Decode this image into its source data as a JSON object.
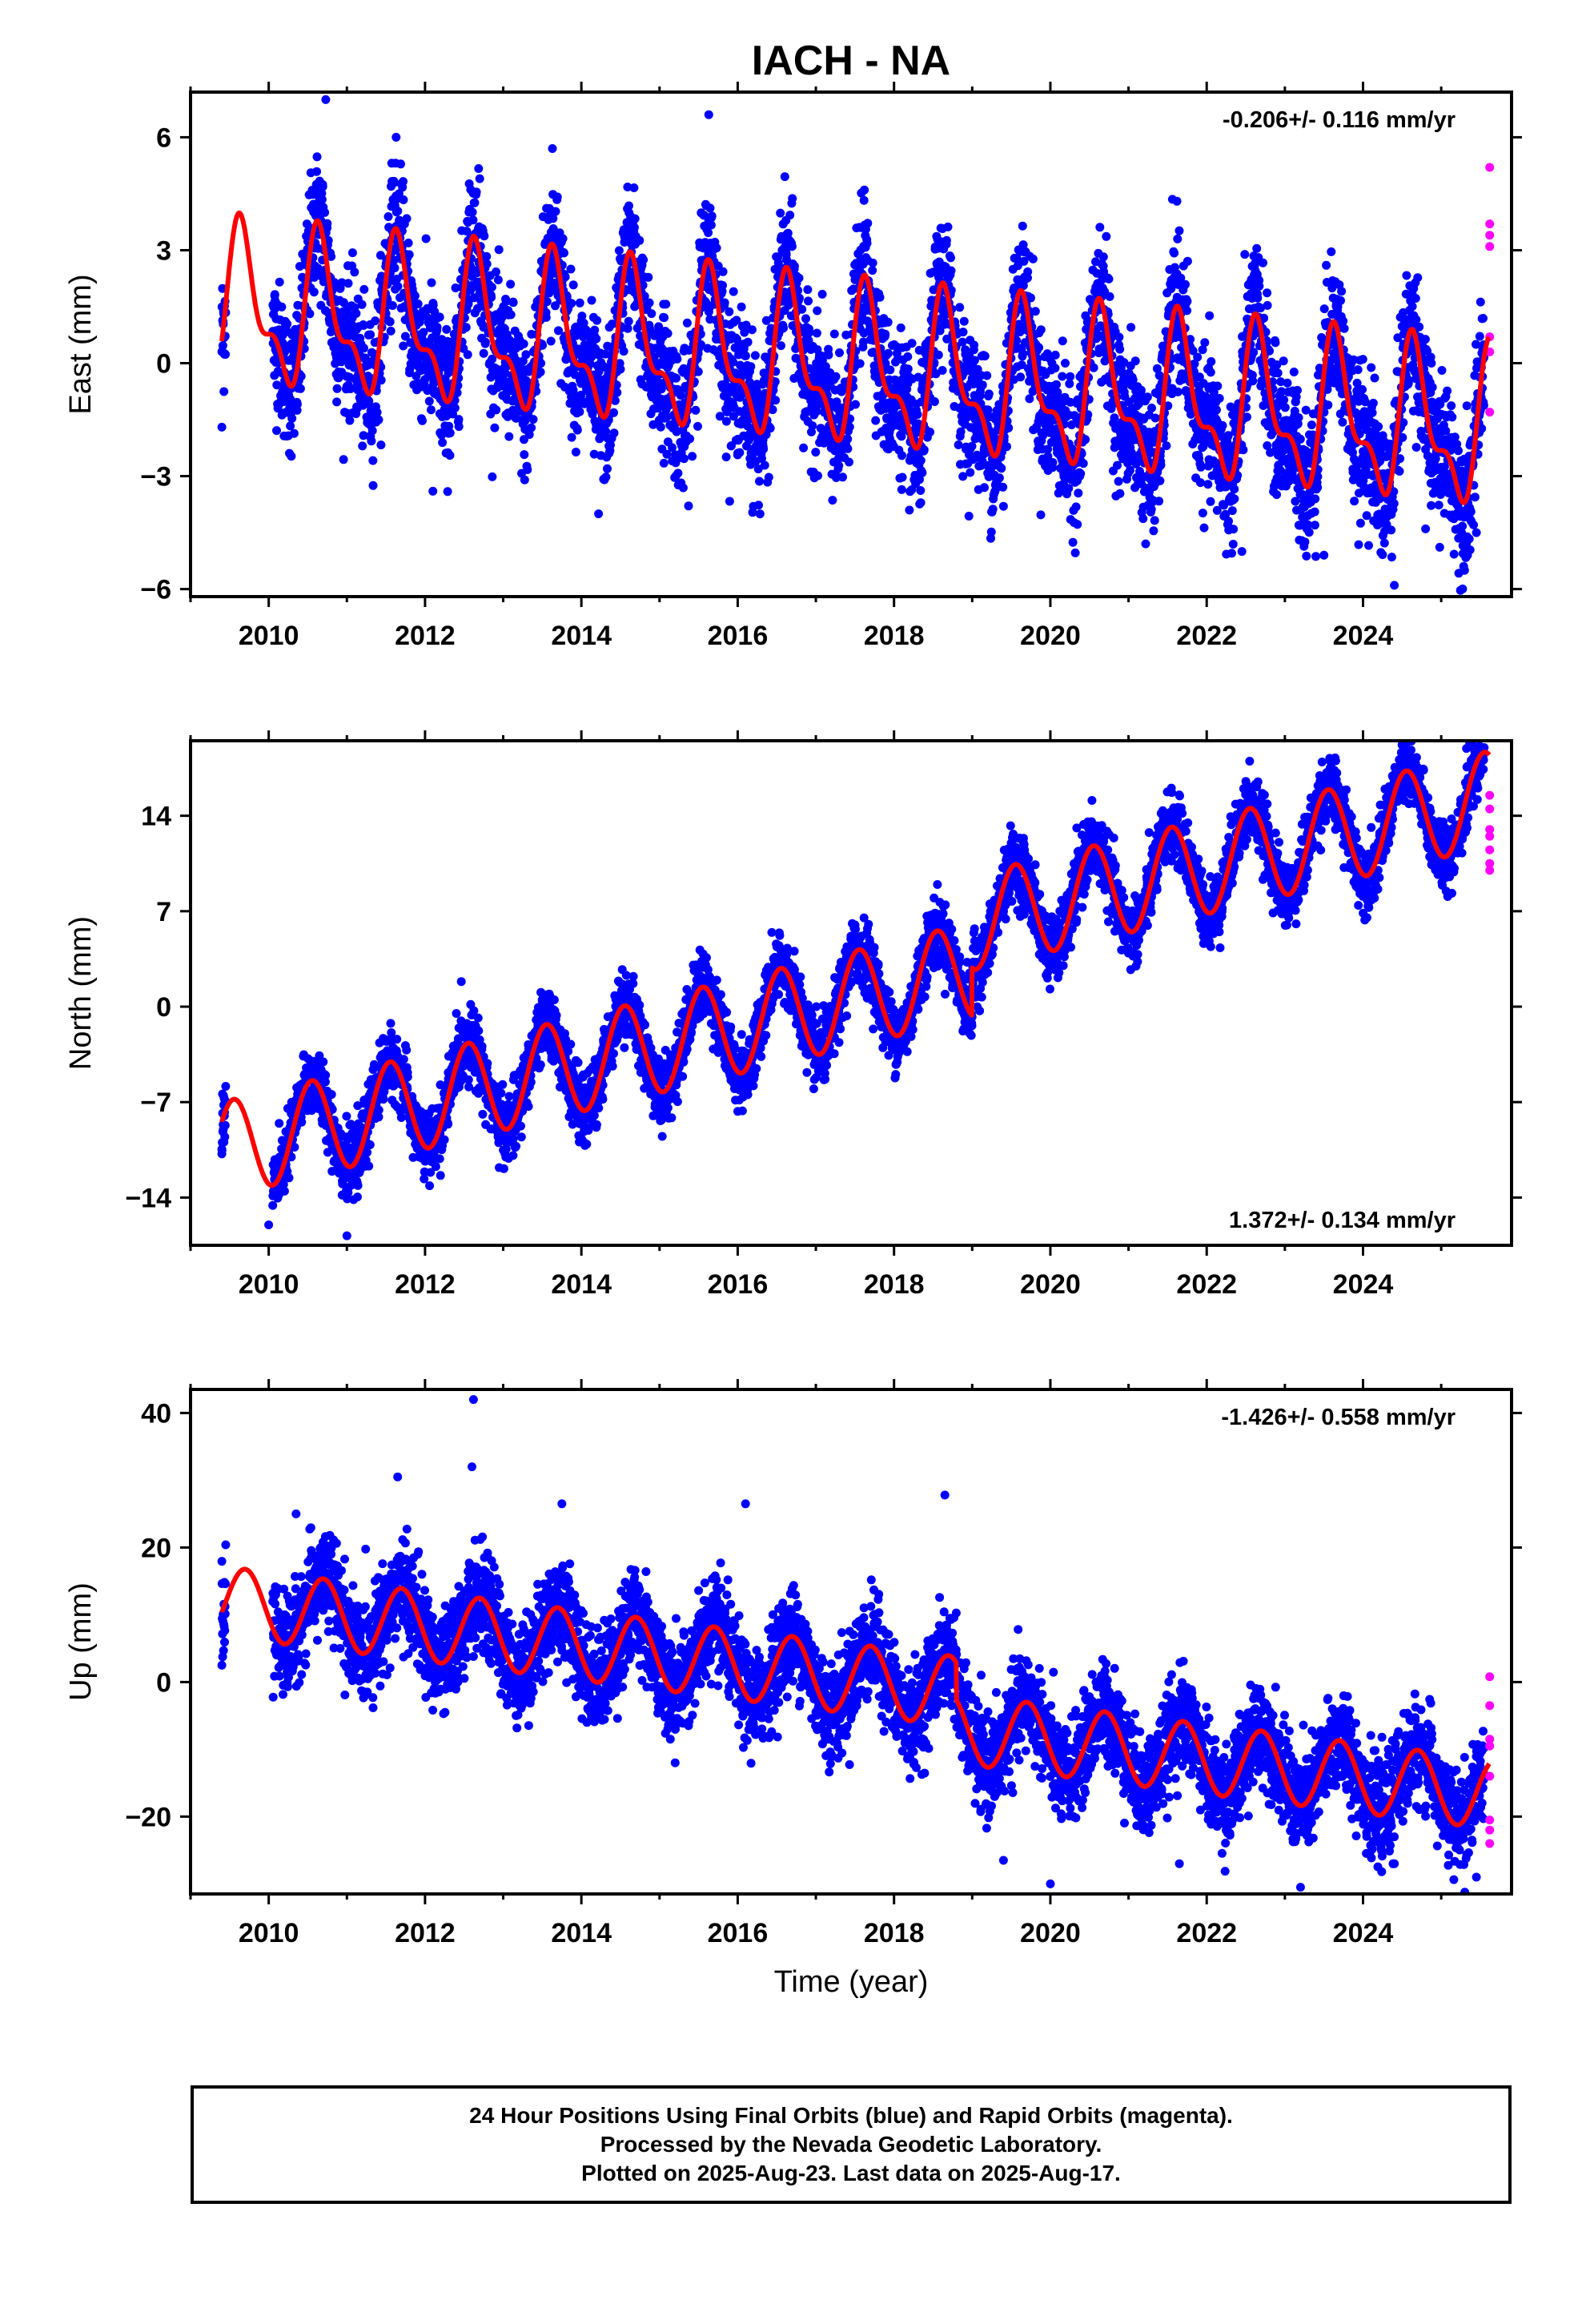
{
  "chart_data": [
    {
      "type": "scatter",
      "title": "IACH - NA",
      "ylabel": "East (mm)",
      "xlim": [
        2009.0,
        2025.9
      ],
      "ylim": [
        -6.2,
        7.2
      ],
      "yticks": [
        -6,
        -3,
        0,
        3,
        6
      ],
      "yticklabels": [
        "−6",
        "−3",
        "0",
        "3",
        "6"
      ],
      "xticks": [
        2010,
        2012,
        2014,
        2016,
        2018,
        2020,
        2022,
        2024
      ],
      "xticklabels": [
        "2010",
        "2012",
        "2014",
        "2016",
        "2018",
        "2020",
        "2022",
        "2024"
      ],
      "rate": "-0.206+/- 0.116 mm/yr",
      "rate_position": "top-right",
      "model": {
        "trend_mm_per_yr": -0.206,
        "offset": 1.5,
        "ref_year": 2009.4,
        "annual_amp": 1.8,
        "annual_phase_year": 2009.67,
        "semiannual_amp": 0.85,
        "semiannual_phase_year": 2009.6
      },
      "series": [
        {
          "name": "Final Orbits",
          "color": "#0000ff",
          "x_range": [
            2009.4,
            2025.55
          ],
          "scatter_sd": 0.9,
          "points": [
            [
              2009.4,
              -1.7
            ],
            [
              2010.73,
              7.0
            ],
            [
              2011.63,
              6.0
            ],
            [
              2012.1,
              -3.4
            ],
            [
              2012.7,
              4.9
            ],
            [
              2013.63,
              5.7
            ],
            [
              2014.22,
              -4.0
            ],
            [
              2015.63,
              6.6
            ],
            [
              2016.2,
              -3.8
            ],
            [
              2017.62,
              4.6
            ],
            [
              2019.4,
              -3.8
            ],
            [
              2021.62,
              4.3
            ],
            [
              2022.45,
              -5.0
            ],
            [
              2023.5,
              -5.1
            ],
            [
              2024.4,
              -5.9
            ],
            [
              2024.8,
              -4.4
            ],
            [
              2025.45,
              -4.5
            ]
          ]
        },
        {
          "name": "Rapid Orbits",
          "color": "#ff00ff",
          "points": [
            [
              2025.62,
              5.2
            ],
            [
              2025.62,
              3.7
            ],
            [
              2025.62,
              3.4
            ],
            [
              2025.62,
              3.1
            ],
            [
              2025.62,
              0.7
            ],
            [
              2025.62,
              0.3
            ],
            [
              2025.62,
              -1.3
            ]
          ]
        },
        {
          "name": "model",
          "color": "#ff0000",
          "x_range": [
            2009.4,
            2025.62
          ]
        }
      ]
    },
    {
      "type": "scatter",
      "ylabel": "North (mm)",
      "xlim": [
        2009.0,
        2025.9
      ],
      "ylim": [
        -17.5,
        19.5
      ],
      "yticks": [
        -14,
        -7,
        0,
        7,
        14
      ],
      "yticklabels": [
        "−14",
        "−7",
        "0",
        "7",
        "14"
      ],
      "xticks": [
        2010,
        2012,
        2014,
        2016,
        2018,
        2020,
        2022,
        2024
      ],
      "xticklabels": [
        "2010",
        "2012",
        "2014",
        "2016",
        "2018",
        "2020",
        "2022",
        "2024"
      ],
      "rate": "1.372+/- 0.134 mm/yr",
      "rate_position": "bottom-right",
      "model": {
        "trend_mm_per_yr": 1.372,
        "offset": -10.5,
        "ref_year": 2009.4,
        "annual_amp": 3.5,
        "annual_phase_year": 2009.55,
        "semiannual_amp": 0,
        "semiannual_phase_year": 2009.55,
        "step_year": 2019.0,
        "step_mm": 3.5
      },
      "series": [
        {
          "name": "Final Orbits",
          "color": "#0000ff",
          "x_range": [
            2009.4,
            2025.55
          ],
          "scatter_sd": 1.2,
          "points": [
            [
              2009.4,
              -10.8
            ],
            [
              2010.0,
              -16.0
            ],
            [
              2010.55,
              -4.8
            ],
            [
              2011.0,
              -16.8
            ],
            [
              2012.4,
              -0.5
            ],
            [
              2013.5,
              0.2
            ],
            [
              2016.55,
              3.0
            ],
            [
              2017.5,
              5.2
            ],
            [
              2019.5,
              12.0
            ],
            [
              2020.5,
              13.0
            ],
            [
              2021.5,
              11.8
            ],
            [
              2022.55,
              18.0
            ],
            [
              2023.5,
              16.5
            ],
            [
              2024.5,
              19.5
            ],
            [
              2025.55,
              19.0
            ]
          ]
        },
        {
          "name": "Rapid Orbits",
          "color": "#ff00ff",
          "points": [
            [
              2025.62,
              15.5
            ],
            [
              2025.62,
              14.5
            ],
            [
              2025.62,
              13.0
            ],
            [
              2025.62,
              12.5
            ],
            [
              2025.62,
              11.5
            ],
            [
              2025.62,
              10.5
            ],
            [
              2025.62,
              10.0
            ]
          ]
        },
        {
          "name": "model",
          "color": "#ff0000",
          "x_range": [
            2009.4,
            2025.62
          ]
        }
      ]
    },
    {
      "type": "scatter",
      "ylabel": "Up (mm)",
      "xlabel": "Time (year)",
      "xlim": [
        2009.0,
        2025.9
      ],
      "ylim": [
        -31.5,
        43.5
      ],
      "yticks": [
        -20,
        0,
        20,
        40
      ],
      "yticklabels": [
        "−20",
        "0",
        "20",
        "40"
      ],
      "xticks": [
        2010,
        2012,
        2014,
        2016,
        2018,
        2020,
        2022,
        2024
      ],
      "xticklabels": [
        "2010",
        "2012",
        "2014",
        "2016",
        "2018",
        "2020",
        "2022",
        "2024"
      ],
      "rate": "-1.426+/- 0.558 mm/yr",
      "rate_position": "top-right",
      "model": {
        "trend_mm_per_yr": -1.426,
        "offset": 12.0,
        "ref_year": 2009.4,
        "annual_amp": 5.2,
        "annual_phase_year": 2009.7,
        "semiannual_amp": 0,
        "semiannual_phase_year": 2009.7,
        "step_year": 2018.8,
        "step_mm": -5.5
      },
      "series": [
        {
          "name": "Final Orbits",
          "color": "#0000ff",
          "x_range": [
            2009.4,
            2025.55
          ],
          "scatter_sd": 3.6,
          "points": [
            [
              2009.4,
              2.5
            ],
            [
              2010.35,
              25.0
            ],
            [
              2011.65,
              30.5
            ],
            [
              2012.62,
              42.0
            ],
            [
              2012.6,
              32.0
            ],
            [
              2013.75,
              26.5
            ],
            [
              2015.2,
              -12.0
            ],
            [
              2016.1,
              26.5
            ],
            [
              2018.65,
              27.8
            ],
            [
              2019.4,
              -26.5
            ],
            [
              2020.0,
              -30.0
            ],
            [
              2021.65,
              -27.0
            ],
            [
              2023.2,
              -30.5
            ],
            [
              2024.4,
              -27.0
            ],
            [
              2025.45,
              -29.0
            ]
          ]
        },
        {
          "name": "Rapid Orbits",
          "color": "#ff00ff",
          "points": [
            [
              2025.62,
              0.8
            ],
            [
              2025.62,
              -3.5
            ],
            [
              2025.62,
              -8.5
            ],
            [
              2025.62,
              -9.5
            ],
            [
              2025.62,
              -14.0
            ],
            [
              2025.62,
              -20.5
            ],
            [
              2025.62,
              -22.0
            ],
            [
              2025.62,
              -24.0
            ]
          ]
        },
        {
          "name": "model",
          "color": "#ff0000",
          "x_range": [
            2009.4,
            2025.62
          ]
        }
      ]
    }
  ],
  "footer": {
    "line1": "24 Hour Positions Using Final Orbits (blue) and Rapid Orbits (magenta).",
    "line2": "Processed by the Nevada Geodetic Laboratory.",
    "line3": "Plotted on 2025-Aug-23. Last data on 2025-Aug-17."
  }
}
